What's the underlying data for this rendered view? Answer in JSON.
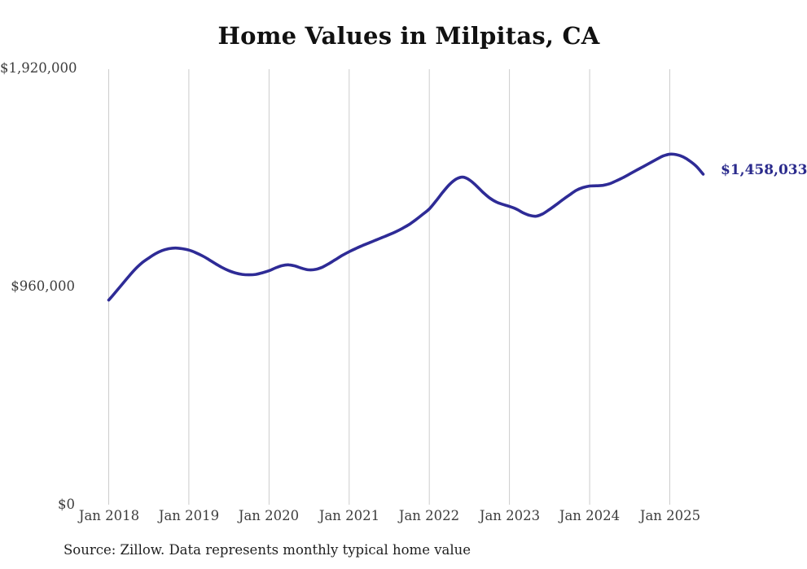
{
  "colors": {
    "line": "#2e2b96",
    "end_label": "#2a2a8c",
    "gridline": "#cccccc",
    "axis_text": "#3d3d3d",
    "title_text": "#111111",
    "background": "#ffffff"
  },
  "chart_data": {
    "type": "line",
    "title": "Home Values in Milpitas, CA",
    "source_note": "Source: Zillow. Data represents monthly typical home value",
    "end_label": "$1,458,033",
    "latest_value": 1458033,
    "ylim": [
      0,
      1920000
    ],
    "grid": "vertical-only",
    "legend": "none",
    "y_ticks": [
      {
        "label": "$0",
        "value": 0
      },
      {
        "label": "$960,000",
        "value": 960000
      },
      {
        "label": "$1,920,000",
        "value": 1920000
      }
    ],
    "x_ticks": [
      {
        "label": "Jan 2018",
        "month_index": 0
      },
      {
        "label": "Jan 2019",
        "month_index": 12
      },
      {
        "label": "Jan 2020",
        "month_index": 24
      },
      {
        "label": "Jan 2021",
        "month_index": 36
      },
      {
        "label": "Jan 2022",
        "month_index": 48
      },
      {
        "label": "Jan 2023",
        "month_index": 60
      },
      {
        "label": "Jan 2024",
        "month_index": 72
      },
      {
        "label": "Jan 2025",
        "month_index": 84
      }
    ],
    "series": [
      {
        "name": "Typical home value",
        "color": "#2e2b96",
        "x": [
          "2018-01",
          "2018-02",
          "2018-03",
          "2018-04",
          "2018-05",
          "2018-06",
          "2018-07",
          "2018-08",
          "2018-09",
          "2018-10",
          "2018-11",
          "2018-12",
          "2019-01",
          "2019-02",
          "2019-03",
          "2019-04",
          "2019-05",
          "2019-06",
          "2019-07",
          "2019-08",
          "2019-09",
          "2019-10",
          "2019-11",
          "2019-12",
          "2020-01",
          "2020-02",
          "2020-03",
          "2020-04",
          "2020-05",
          "2020-06",
          "2020-07",
          "2020-08",
          "2020-09",
          "2020-10",
          "2020-11",
          "2020-12",
          "2021-01",
          "2021-02",
          "2021-03",
          "2021-04",
          "2021-05",
          "2021-06",
          "2021-07",
          "2021-08",
          "2021-09",
          "2021-10",
          "2021-11",
          "2021-12",
          "2022-01",
          "2022-02",
          "2022-03",
          "2022-04",
          "2022-05",
          "2022-06",
          "2022-07",
          "2022-08",
          "2022-09",
          "2022-10",
          "2022-11",
          "2022-12",
          "2023-01",
          "2023-02",
          "2023-03",
          "2023-04",
          "2023-05",
          "2023-06",
          "2023-07",
          "2023-08",
          "2023-09",
          "2023-10",
          "2023-11",
          "2023-12",
          "2024-01",
          "2024-02",
          "2024-03",
          "2024-04",
          "2024-05",
          "2024-06",
          "2024-07",
          "2024-08",
          "2024-09",
          "2024-10",
          "2024-11",
          "2024-12",
          "2025-01",
          "2025-02",
          "2025-03",
          "2025-04",
          "2025-05",
          "2025-06"
        ],
        "values": [
          904000,
          938000,
          973000,
          1008000,
          1041000,
          1068000,
          1089000,
          1108000,
          1122000,
          1130000,
          1133000,
          1130000,
          1124000,
          1113000,
          1099000,
          1082000,
          1064000,
          1047000,
          1033000,
          1023000,
          1017000,
          1015000,
          1017000,
          1024000,
          1033000,
          1046000,
          1056000,
          1059000,
          1053000,
          1043000,
          1037000,
          1039000,
          1049000,
          1065000,
          1083000,
          1101000,
          1117000,
          1131000,
          1144000,
          1156000,
          1168000,
          1180000,
          1192000,
          1205000,
          1220000,
          1237000,
          1258000,
          1281000,
          1305000,
          1340000,
          1378000,
          1412000,
          1436000,
          1445000,
          1433000,
          1408000,
          1379000,
          1354000,
          1336000,
          1325000,
          1316000,
          1305000,
          1289000,
          1277000,
          1273000,
          1284000,
          1303000,
          1324000,
          1346000,
          1367000,
          1387000,
          1399000,
          1406000,
          1407000,
          1409000,
          1416000,
          1429000,
          1443000,
          1459000,
          1475000,
          1491000,
          1507000,
          1523000,
          1538000,
          1546000,
          1544000,
          1534000,
          1516000,
          1492000,
          1458033
        ]
      }
    ]
  }
}
